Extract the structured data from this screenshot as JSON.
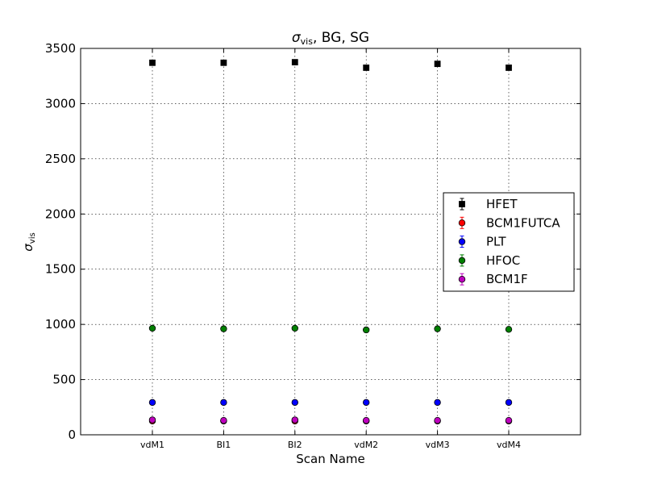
{
  "chart_data": {
    "type": "scatter",
    "title": "σvis, BG, SG",
    "title_symbol": "σ",
    "title_subscript": "vis",
    "title_suffix": ", BG, SG",
    "xlabel": "Scan Name",
    "ylabel_symbol": "σ",
    "ylabel_subscript": "vis",
    "categories": [
      "vdM1",
      "BI1",
      "BI2",
      "vdM2",
      "vdM3",
      "vdM4"
    ],
    "ylim": [
      0,
      3500
    ],
    "yticks": [
      0,
      500,
      1000,
      1500,
      2000,
      2500,
      3000,
      3500
    ],
    "grid": true,
    "legend_position": "center-right",
    "series": [
      {
        "name": "HFET",
        "color": "#000000",
        "marker": "square",
        "values": [
          3370,
          3370,
          3375,
          3325,
          3360,
          3325
        ],
        "errors": [
          20,
          20,
          20,
          20,
          20,
          20
        ]
      },
      {
        "name": "BCM1FUTCA",
        "color": "#ff0000",
        "marker": "circle",
        "values": [
          125,
          125,
          125,
          125,
          125,
          125
        ],
        "errors": [
          8,
          8,
          8,
          8,
          8,
          8
        ]
      },
      {
        "name": "PLT",
        "color": "#0000ff",
        "marker": "circle",
        "values": [
          293,
          293,
          293,
          293,
          293,
          293
        ],
        "errors": [
          5,
          5,
          5,
          5,
          5,
          5
        ]
      },
      {
        "name": "HFOC",
        "color": "#007f00",
        "marker": "circle",
        "values": [
          965,
          960,
          965,
          950,
          960,
          955
        ],
        "errors": [
          5,
          5,
          5,
          5,
          5,
          5
        ]
      },
      {
        "name": "BCM1F",
        "color": "#bf00bf",
        "marker": "circle",
        "values": [
          135,
          130,
          135,
          130,
          130,
          130
        ],
        "errors": [
          8,
          8,
          8,
          8,
          8,
          8
        ]
      }
    ]
  }
}
